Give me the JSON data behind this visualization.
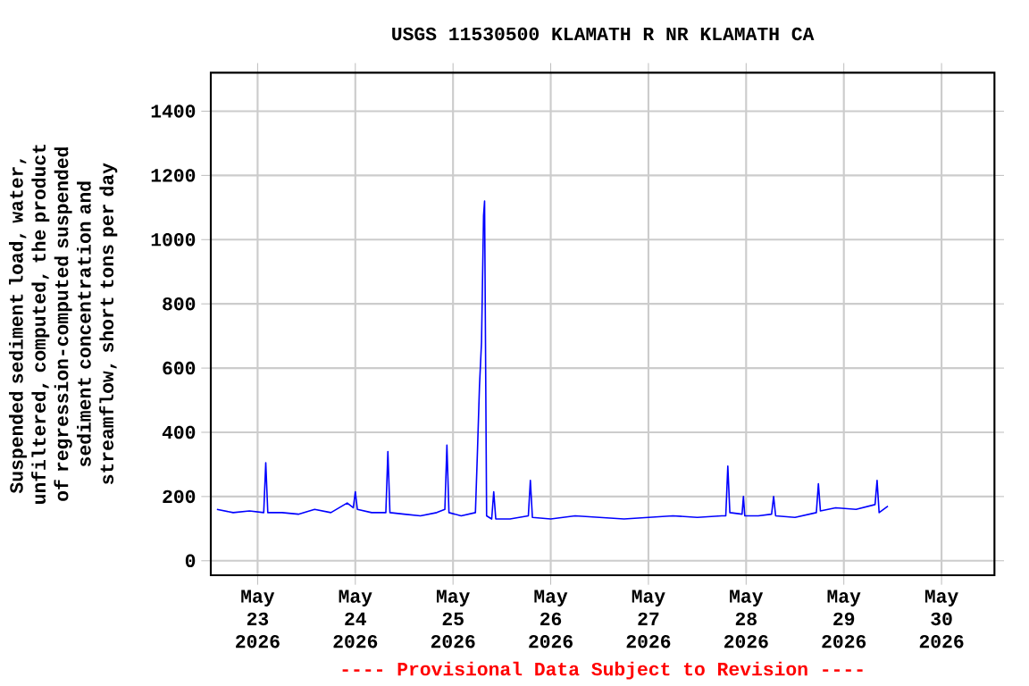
{
  "chart_data": {
    "type": "line",
    "title": "USGS 11530500 KLAMATH R NR KLAMATH CA",
    "ylabel": "Suspended sediment load, water, unfiltered, computed, the product of regression-computed suspended sediment concentration and streamflow, short tons per day",
    "annotations": [
      "---- Provisional Data Subject to Revision ----"
    ],
    "x": [
      "2026-05-22T14:00",
      "2026-05-22T18:00",
      "2026-05-22T22:00",
      "2026-05-23T01:30",
      "2026-05-23T02:00",
      "2026-05-23T02:30",
      "2026-05-23T06:00",
      "2026-05-23T10:00",
      "2026-05-23T14:00",
      "2026-05-23T18:00",
      "2026-05-23T22:00",
      "2026-05-23T23:30",
      "2026-05-24T00:00",
      "2026-05-24T00:30",
      "2026-05-24T04:00",
      "2026-05-24T07:30",
      "2026-05-24T08:00",
      "2026-05-24T08:30",
      "2026-05-24T12:00",
      "2026-05-24T16:00",
      "2026-05-24T20:00",
      "2026-05-24T22:00",
      "2026-05-24T22:30",
      "2026-05-24T23:00",
      "2026-05-25T02:00",
      "2026-05-25T05:30",
      "2026-05-25T06:00",
      "2026-05-25T06:30",
      "2026-05-25T07:00",
      "2026-05-25T07:30",
      "2026-05-25T07:45",
      "2026-05-25T08:15",
      "2026-05-25T09:30",
      "2026-05-25T10:00",
      "2026-05-25T10:30",
      "2026-05-25T14:00",
      "2026-05-25T18:30",
      "2026-05-25T19:00",
      "2026-05-25T19:30",
      "2026-05-26T00:00",
      "2026-05-26T06:00",
      "2026-05-26T12:00",
      "2026-05-26T18:00",
      "2026-05-27T00:00",
      "2026-05-27T06:00",
      "2026-05-27T12:00",
      "2026-05-27T18:00",
      "2026-05-27T19:00",
      "2026-05-27T19:30",
      "2026-05-27T20:00",
      "2026-05-27T23:00",
      "2026-05-27T23:20",
      "2026-05-27T23:40",
      "2026-05-28T03:00",
      "2026-05-28T06:15",
      "2026-05-28T06:45",
      "2026-05-28T07:15",
      "2026-05-28T12:00",
      "2026-05-28T17:15",
      "2026-05-28T17:45",
      "2026-05-28T18:15",
      "2026-05-28T22:00",
      "2026-05-29T03:00",
      "2026-05-29T07:40",
      "2026-05-29T08:10",
      "2026-05-29T08:40",
      "2026-05-29T10:50"
    ],
    "series": [
      {
        "color": "#0000ff",
        "values": [
          160,
          150,
          155,
          150,
          305,
          150,
          150,
          145,
          160,
          150,
          180,
          165,
          215,
          160,
          150,
          150,
          340,
          150,
          145,
          140,
          150,
          160,
          360,
          150,
          140,
          150,
          340,
          545,
          680,
          1075,
          1120,
          140,
          130,
          215,
          130,
          130,
          140,
          250,
          135,
          130,
          140,
          135,
          130,
          135,
          140,
          135,
          140,
          140,
          295,
          150,
          145,
          200,
          140,
          140,
          145,
          200,
          140,
          135,
          150,
          240,
          155,
          165,
          160,
          175,
          250,
          150,
          170
        ]
      }
    ],
    "xlim": [
      "2026-05-22T12:30",
      "2026-05-30T13:00"
    ],
    "xticks": [
      {
        "value": "2026-05-23",
        "label": "May 23 2026"
      },
      {
        "value": "2026-05-24",
        "label": "May 24 2026"
      },
      {
        "value": "2026-05-25",
        "label": "May 25 2026"
      },
      {
        "value": "2026-05-26",
        "label": "May 26 2026"
      },
      {
        "value": "2026-05-27",
        "label": "May 27 2026"
      },
      {
        "value": "2026-05-28",
        "label": "May 28 2026"
      },
      {
        "value": "2026-05-29",
        "label": "May 29 2026"
      },
      {
        "value": "2026-05-30",
        "label": "May 30 2026"
      }
    ],
    "ylim": [
      -45,
      1520
    ],
    "yticks": [
      0,
      200,
      400,
      600,
      800,
      1000,
      1200,
      1400
    ],
    "grid": true,
    "marker": "none",
    "line_style": "solid"
  }
}
